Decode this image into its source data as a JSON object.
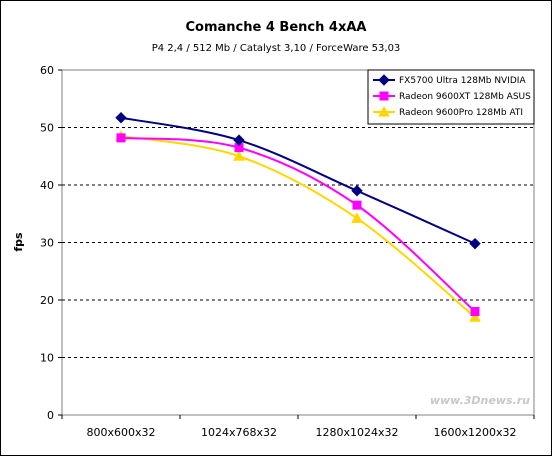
{
  "chart_data": {
    "type": "line",
    "title": "Comanche 4 Bench 4xAA",
    "subtitle": "P4 2,4 / 512 Mb / Catalyst 3,10 / ForceWare 53,03",
    "xlabel": "",
    "ylabel": "fps",
    "categories": [
      "800x600x32",
      "1024x768x32",
      "1280x1024x32",
      "1600x1200x32"
    ],
    "ylim": [
      0,
      60
    ],
    "yticks": [
      0,
      10,
      20,
      30,
      40,
      50,
      60
    ],
    "grid": "horizontal-dashed",
    "legend_position": "top-right",
    "series": [
      {
        "name": "FX5700 Ultra 128Mb NVIDIA",
        "values": [
          51.7,
          47.8,
          39.0,
          29.8
        ],
        "color": "#000080",
        "marker": "diamond"
      },
      {
        "name": "Radeon 9600XT 128Mb ASUS",
        "values": [
          48.2,
          46.5,
          36.5,
          18.0
        ],
        "color": "#ff00ff",
        "marker": "square"
      },
      {
        "name": "Radeon 9600Pro 128Mb ATI",
        "values": [
          48.5,
          45.0,
          34.2,
          17.0
        ],
        "color": "#ffd700",
        "marker": "triangle"
      }
    ]
  },
  "watermark": "www.3Dnews.ru"
}
